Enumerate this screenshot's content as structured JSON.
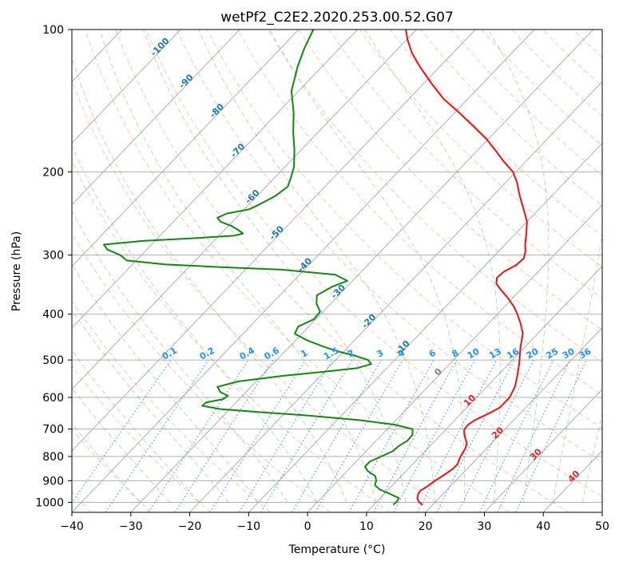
{
  "chart_data": {
    "type": "line",
    "diagram": "skew-T log-p",
    "title": "wetPf2_C2E2.2020.253.00.52.G07",
    "xlabel": "Temperature (°C)",
    "ylabel": "Pressure (hPa)",
    "xlim": [
      -40,
      50
    ],
    "ylim": [
      1050,
      100
    ],
    "y_scale": "log",
    "grid": true,
    "x_ticks": [
      -40,
      -30,
      -20,
      -10,
      0,
      10,
      20,
      30,
      40,
      50
    ],
    "y_ticks": [
      1000,
      900,
      800,
      700,
      600,
      500,
      400,
      300,
      200,
      100
    ],
    "series": [
      {
        "role": "temperature",
        "color": "#ee1111",
        "points": [
          [
            1012,
            18.3
          ],
          [
            1000,
            17.3
          ],
          [
            980,
            16.3
          ],
          [
            960,
            15.8
          ],
          [
            945,
            15.6
          ],
          [
            930,
            16.0
          ],
          [
            900,
            16.5
          ],
          [
            870,
            17.2
          ],
          [
            850,
            17.6
          ],
          [
            830,
            17.6
          ],
          [
            810,
            17.1
          ],
          [
            790,
            16.7
          ],
          [
            770,
            16.4
          ],
          [
            750,
            15.8
          ],
          [
            730,
            14.6
          ],
          [
            710,
            13.5
          ],
          [
            700,
            13.1
          ],
          [
            685,
            13.0
          ],
          [
            670,
            13.4
          ],
          [
            650,
            14.6
          ],
          [
            630,
            15.6
          ],
          [
            600,
            15.6
          ],
          [
            570,
            14.8
          ],
          [
            540,
            13.4
          ],
          [
            510,
            11.8
          ],
          [
            500,
            11.2
          ],
          [
            470,
            9.3
          ],
          [
            440,
            7.5
          ],
          [
            420,
            5.6
          ],
          [
            400,
            3.4
          ],
          [
            385,
            1.5
          ],
          [
            370,
            -0.8
          ],
          [
            355,
            -3.4
          ],
          [
            345,
            -5.1
          ],
          [
            335,
            -6.0
          ],
          [
            325,
            -5.8
          ],
          [
            315,
            -4.8
          ],
          [
            305,
            -4.6
          ],
          [
            295,
            -5.4
          ],
          [
            285,
            -6.6
          ],
          [
            270,
            -8.2
          ],
          [
            255,
            -10.0
          ],
          [
            240,
            -12.6
          ],
          [
            225,
            -15.4
          ],
          [
            210,
            -18.2
          ],
          [
            200,
            -20.5
          ],
          [
            190,
            -23.8
          ],
          [
            180,
            -27.0
          ],
          [
            170,
            -30.5
          ],
          [
            160,
            -34.7
          ],
          [
            150,
            -39.2
          ],
          [
            140,
            -44.2
          ],
          [
            130,
            -48.7
          ],
          [
            120,
            -53.3
          ],
          [
            112,
            -57.0
          ],
          [
            105,
            -59.9
          ],
          [
            100,
            -61.8
          ]
        ]
      },
      {
        "role": "dewpoint",
        "color": "#118811",
        "points": [
          [
            1012,
            13.3
          ],
          [
            1000,
            13.4
          ],
          [
            980,
            13.2
          ],
          [
            960,
            11.0
          ],
          [
            940,
            8.6
          ],
          [
            920,
            7.0
          ],
          [
            900,
            6.5
          ],
          [
            880,
            5.6
          ],
          [
            860,
            3.6
          ],
          [
            840,
            2.3
          ],
          [
            820,
            2.3
          ],
          [
            800,
            3.4
          ],
          [
            780,
            4.5
          ],
          [
            760,
            4.7
          ],
          [
            740,
            5.3
          ],
          [
            720,
            5.2
          ],
          [
            700,
            4.3
          ],
          [
            685,
            0.5
          ],
          [
            670,
            -6.3
          ],
          [
            655,
            -15.8
          ],
          [
            645,
            -24.0
          ],
          [
            635,
            -31.6
          ],
          [
            625,
            -35.2
          ],
          [
            615,
            -35.1
          ],
          [
            605,
            -32.7
          ],
          [
            595,
            -32.5
          ],
          [
            585,
            -34.3
          ],
          [
            570,
            -35.7
          ],
          [
            555,
            -33.1
          ],
          [
            540,
            -26.3
          ],
          [
            530,
            -20.4
          ],
          [
            520,
            -15.0
          ],
          [
            510,
            -13.3
          ],
          [
            500,
            -14.5
          ],
          [
            490,
            -17.3
          ],
          [
            480,
            -20.8
          ],
          [
            470,
            -23.8
          ],
          [
            455,
            -27.9
          ],
          [
            440,
            -31.2
          ],
          [
            425,
            -31.8
          ],
          [
            410,
            -30.3
          ],
          [
            395,
            -30.5
          ],
          [
            380,
            -32.4
          ],
          [
            365,
            -33.7
          ],
          [
            350,
            -32.5
          ],
          [
            340,
            -30.9
          ],
          [
            330,
            -33.9
          ],
          [
            322,
            -43.8
          ],
          [
            318,
            -54.6
          ],
          [
            314,
            -64.4
          ],
          [
            308,
            -71.6
          ],
          [
            300,
            -73.6
          ],
          [
            292,
            -76.7
          ],
          [
            285,
            -78.1
          ],
          [
            280,
            -72.1
          ],
          [
            276,
            -63.3
          ],
          [
            273,
            -57.5
          ],
          [
            270,
            -56.3
          ],
          [
            265,
            -57.8
          ],
          [
            260,
            -59.6
          ],
          [
            255,
            -62.0
          ],
          [
            250,
            -63.2
          ],
          [
            245,
            -62.3
          ],
          [
            240,
            -59.2
          ],
          [
            235,
            -58.3
          ],
          [
            225,
            -56.9
          ],
          [
            215,
            -56.3
          ],
          [
            205,
            -57.3
          ],
          [
            195,
            -58.5
          ],
          [
            180,
            -61.1
          ],
          [
            165,
            -64.2
          ],
          [
            150,
            -67.3
          ],
          [
            135,
            -71.2
          ],
          [
            120,
            -74.1
          ],
          [
            110,
            -75.9
          ],
          [
            100,
            -77.5
          ]
        ]
      }
    ],
    "dry_adiabat_labels": [
      "-100",
      "-90",
      "-80",
      "-70",
      "-60",
      "-50",
      "-40",
      "-30",
      "-20",
      "-10",
      "0",
      "10",
      "20",
      "30",
      "40"
    ],
    "mixing_ratio_labels": [
      "0.1",
      "0.2",
      "0.4",
      "0.6",
      "1",
      "1.5",
      "2",
      "3",
      "4",
      "6",
      "8",
      "10",
      "13",
      "16",
      "20",
      "25",
      "30",
      "36"
    ],
    "colors": {
      "dry_adiabat_label": "#1f77b4",
      "mixing_ratio": "#1e90ff",
      "zero_label": "#808080",
      "warm_label": "#d62728",
      "isotherm_grid": "#b0b0b0",
      "dry_adiabat_line": "#ff7f50",
      "moist_adiabat_line": "#2ca02c",
      "light_cycle": "#d2b48c"
    }
  }
}
